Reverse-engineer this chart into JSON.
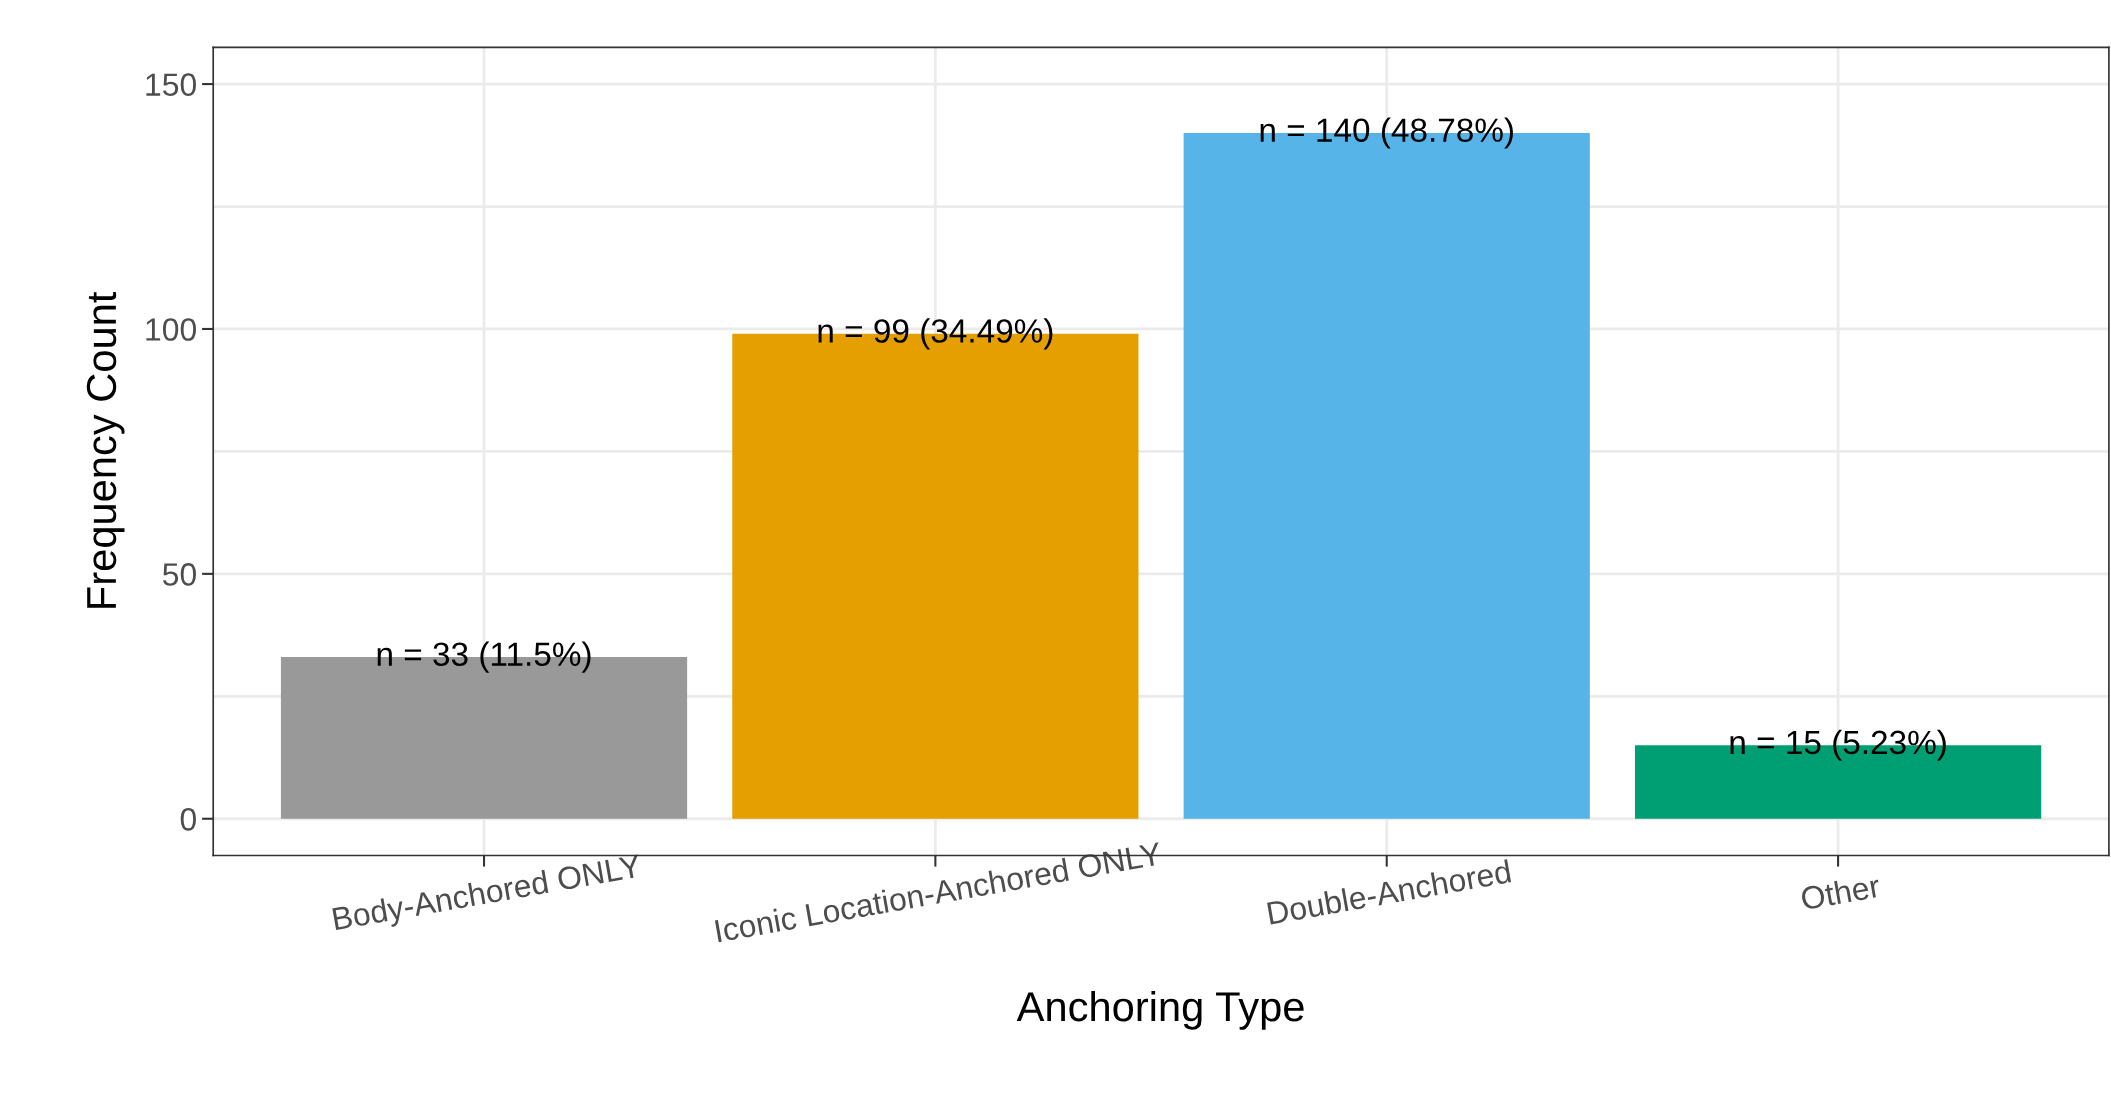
{
  "chart_data": {
    "type": "bar",
    "xlabel": "Anchoring Type",
    "ylabel": "Frequency Count",
    "categories": [
      "Body-Anchored ONLY",
      "Iconic Location-Anchored ONLY",
      "Double-Anchored",
      "Other"
    ],
    "values": [
      33,
      99,
      140,
      15
    ],
    "colors": [
      "#999999",
      "#e69f00",
      "#56b4e9",
      "#009e73"
    ],
    "value_labels": [
      "n = 33 (11.5%)",
      "n = 99 (34.49%)",
      "n = 140 (48.78%)",
      "n = 15 (5.23%)"
    ],
    "ylim": [
      -7.5,
      157.5
    ],
    "yticks": [
      0,
      {
        "value": 25,
        "label": null
      },
      50,
      {
        "value": 75,
        "label": null
      },
      100,
      {
        "value": 125,
        "label": null
      },
      150
    ],
    "grid": true
  }
}
